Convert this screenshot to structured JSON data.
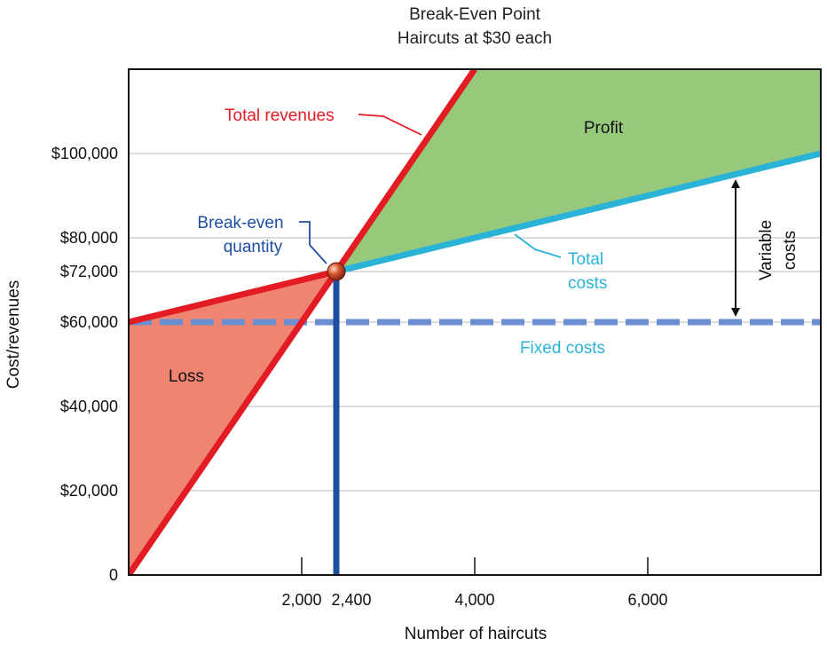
{
  "chart_data": {
    "type": "line",
    "title": "Break-Even Point",
    "subtitle": "Haircuts at $30 each",
    "xlabel": "Number of haircuts",
    "ylabel": "Cost/revenues",
    "xlim": [
      0,
      8000
    ],
    "ylim": [
      0,
      120000
    ],
    "grid": true,
    "x_ticks": [
      {
        "value": 2000,
        "label": "2,000"
      },
      {
        "value": 4000,
        "label": "4,000"
      },
      {
        "value": 6000,
        "label": "6,000"
      }
    ],
    "highlight_tick": {
      "value": 2400,
      "label": "2,400"
    },
    "y_ticks": [
      {
        "value": 0,
        "label": "0"
      },
      {
        "value": 20000,
        "label": "$20,000"
      },
      {
        "value": 40000,
        "label": "$40,000"
      },
      {
        "value": 60000,
        "label": "$60,000"
      },
      {
        "value": 72000,
        "label": "$72,000"
      },
      {
        "value": 80000,
        "label": "$80,000"
      },
      {
        "value": 100000,
        "label": "$100,000"
      }
    ],
    "series": [
      {
        "name": "Total revenues",
        "color": "#e31b23",
        "x": [
          0,
          4000
        ],
        "y": [
          0,
          120000
        ]
      },
      {
        "name": "Total costs",
        "color": "#2ab3d6",
        "x": [
          2400,
          8000
        ],
        "y": [
          72000,
          100000
        ]
      },
      {
        "name": "Fixed costs",
        "color": "#6a8fd3",
        "style": "dashed",
        "x": [
          0,
          8000
        ],
        "y": [
          60000,
          60000
        ]
      }
    ],
    "pre_break_even_cost_line": {
      "color": "#e31b23",
      "x": [
        0,
        2400
      ],
      "y": [
        60000,
        72000
      ]
    },
    "break_even": {
      "label": "Break-even quantity",
      "label_lines": [
        "Break-even",
        "quantity"
      ],
      "x": 2400,
      "y": 72000,
      "color": "#1f4fa3"
    },
    "regions": [
      {
        "label": "Profit",
        "color": "#97c97c"
      },
      {
        "label": "Loss",
        "color": "#ef8470"
      }
    ],
    "annotations": {
      "total_revenues": "Total revenues",
      "total_costs_lines": [
        "Total",
        "costs"
      ],
      "fixed_costs": "Fixed costs",
      "variable_costs_lines": [
        "Variable",
        "costs"
      ]
    }
  }
}
